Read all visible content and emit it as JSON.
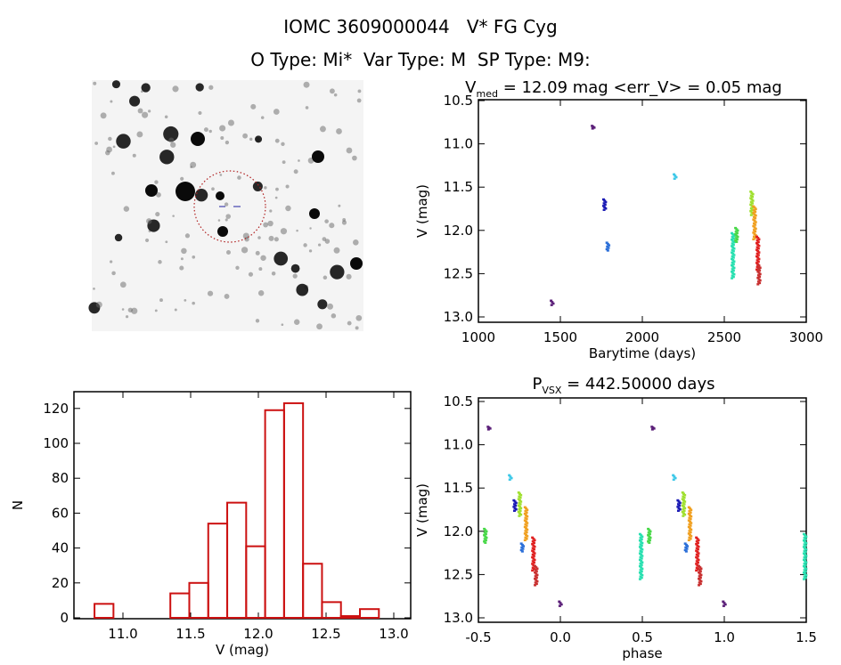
{
  "header": {
    "title": "IOMC 3609000044   V* FG Cyg",
    "subtitle": "O Type: Mi*  Var Type: M  SP Type: M9:"
  },
  "chart_data": [
    {
      "type": "image",
      "panel": "finder-chart",
      "marker": "dashed red circle around target"
    },
    {
      "type": "scatter",
      "panel": "light-curve",
      "title_main": "V",
      "title_sub": "med",
      "title_rest": " = 12.09 mag <err_V> = 0.05 mag",
      "xlabel": "Barytime (days)",
      "ylabel": "V (mag)",
      "xlim": [
        1000,
        3000
      ],
      "ylim": [
        13.0,
        10.5
      ],
      "y_inverted": true,
      "xticks": [
        "1000",
        "1500",
        "2000",
        "2500",
        "3000"
      ],
      "yticks": [
        "10.5",
        "11.0",
        "11.5",
        "12.0",
        "12.5",
        "13.0"
      ],
      "clusters": [
        {
          "t": 1450,
          "mag": [
            12.81,
            12.86
          ],
          "color": "#5a1e78"
        },
        {
          "t": 1700,
          "mag": [
            10.79,
            10.82
          ],
          "color": "#5a1e78"
        },
        {
          "t": 1770,
          "mag": [
            11.64,
            11.76
          ],
          "color": "#1a1ab4"
        },
        {
          "t": 1790,
          "mag": [
            12.14,
            12.23
          ],
          "color": "#2a6ed8"
        },
        {
          "t": 2200,
          "mag": [
            11.35,
            11.4
          ],
          "color": "#3cc8e8"
        },
        {
          "t": 2553,
          "mag": [
            12.03,
            12.55
          ],
          "color": "#28e0b0"
        },
        {
          "t": 2575,
          "mag": [
            11.97,
            12.13
          ],
          "color": "#48d848"
        },
        {
          "t": 2668,
          "mag": [
            11.55,
            11.82
          ],
          "color": "#a0e030"
        },
        {
          "t": 2685,
          "mag": [
            11.72,
            12.1
          ],
          "color": "#f0a020"
        },
        {
          "t": 2705,
          "mag": [
            12.07,
            12.45
          ],
          "color": "#e02020"
        },
        {
          "t": 2712,
          "mag": [
            12.4,
            12.62
          ],
          "color": "#c83030"
        }
      ]
    },
    {
      "type": "bar",
      "panel": "histogram",
      "xlabel": "V (mag)",
      "ylabel": "N",
      "xlim": [
        10.7,
        13.15
      ],
      "ylim": [
        0,
        130
      ],
      "xticks": [
        "11.0",
        "11.5",
        "12.0",
        "12.5",
        "13.0"
      ],
      "yticks": [
        "0",
        "20",
        "40",
        "60",
        "80",
        "100",
        "120"
      ],
      "bin_edges": [
        10.79,
        10.93,
        11.07,
        11.21,
        11.35,
        11.49,
        11.63,
        11.77,
        11.91,
        12.05,
        12.19,
        12.33,
        12.47,
        12.61,
        12.75,
        12.89
      ],
      "values": [
        8,
        0,
        0,
        0,
        14,
        20,
        54,
        66,
        41,
        119,
        123,
        31,
        9,
        1,
        5
      ],
      "color": "#cc1111"
    },
    {
      "type": "scatter",
      "panel": "phase-curve",
      "title_main": "P",
      "title_sub": "VSX",
      "title_rest": " = 442.50000 days",
      "period_days": 442.5,
      "xlabel": "phase",
      "ylabel": "V (mag)",
      "xlim": [
        -0.5,
        1.5
      ],
      "ylim": [
        13.0,
        10.5
      ],
      "y_inverted": true,
      "xticks": [
        "-0.5",
        "0.0",
        "0.5",
        "1.0",
        "1.5"
      ],
      "yticks": [
        "10.5",
        "11.0",
        "11.5",
        "12.0",
        "12.5",
        "13.0"
      ]
    }
  ]
}
